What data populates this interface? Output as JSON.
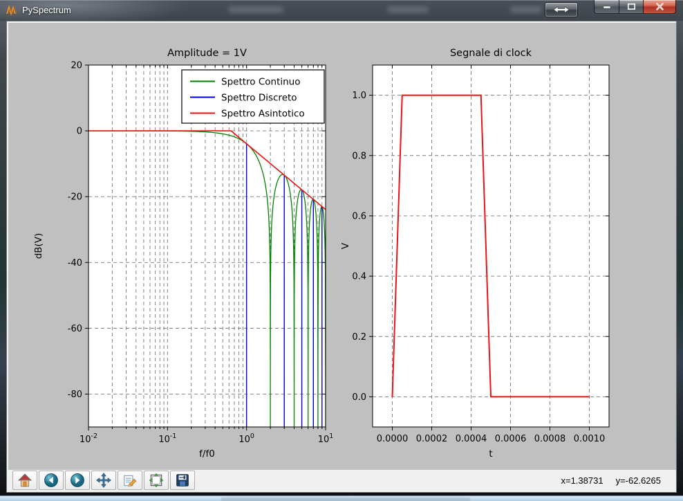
{
  "window": {
    "title": "PySpectrum",
    "app_icon": "matplotlib-logo-icon",
    "controls": [
      {
        "name": "resize",
        "icon": "resize-horizontal-icon"
      },
      {
        "name": "minimize",
        "icon": "minimize-icon"
      },
      {
        "name": "maximize",
        "icon": "maximize-icon"
      },
      {
        "name": "close",
        "icon": "close-icon"
      }
    ]
  },
  "figure": {
    "background_color": "#c0c0c0",
    "axes_background": "#ffffff",
    "grid_color": "#787878"
  },
  "chart_data": [
    {
      "type": "line",
      "title": "Amplitude = 1V",
      "xlabel": "f/f0",
      "ylabel": "dB(V)",
      "xscale": "log",
      "xlim": [
        0.01,
        10
      ],
      "ylim": [
        -90,
        20
      ],
      "xticks": [
        0.01,
        0.1,
        1,
        10
      ],
      "xtick_labels": [
        {
          "base": "10",
          "exp": "-2"
        },
        {
          "base": "10",
          "exp": "-1"
        },
        {
          "base": "10",
          "exp": "0"
        },
        {
          "base": "10",
          "exp": "1"
        }
      ],
      "yticks": [
        20,
        0,
        -20,
        -40,
        -60,
        -80
      ],
      "grid": true,
      "legend": {
        "position": "upper center",
        "entries": [
          {
            "label": "Spettro Continuo",
            "color": "#008000"
          },
          {
            "label": "Spettro Discreto",
            "color": "#0000dd"
          },
          {
            "label": "Spettro Asintotico",
            "color": "#ee1111"
          }
        ]
      },
      "series": [
        {
          "name": "Spettro Continuo",
          "color": "#008000",
          "type": "curve",
          "formula": "20*log10(abs(sin(pi*x/2)/(pi*x/2)))",
          "nulls_at": [
            2,
            4,
            6,
            8,
            10
          ],
          "peak_points": [
            [
              1,
              -3.92
            ],
            [
              3,
              -13.46
            ],
            [
              5,
              -17.9
            ],
            [
              7,
              -20.82
            ],
            [
              9,
              -23.01
            ]
          ]
        },
        {
          "name": "Spettro Discreto",
          "color": "#0000dd",
          "type": "stem",
          "x": [
            1,
            3,
            5,
            7,
            9
          ],
          "y": [
            -3.92,
            -13.46,
            -17.9,
            -20.82,
            -23.01
          ]
        },
        {
          "name": "Spettro Asintotico",
          "color": "#ee1111",
          "type": "line",
          "slope_db_per_decade": -20,
          "points": [
            [
              0.01,
              0
            ],
            [
              0.6366,
              0
            ],
            [
              10,
              -23.92
            ]
          ]
        }
      ]
    },
    {
      "type": "line",
      "title": "Segnale di clock",
      "xlabel": "t",
      "ylabel": "V",
      "xlim": [
        -0.0001,
        0.0011
      ],
      "ylim": [
        -0.1,
        1.1
      ],
      "xticks": [
        0.0,
        0.0002,
        0.0004,
        0.0006,
        0.0008,
        0.001
      ],
      "xtick_labels": [
        "0.0000",
        "0.0002",
        "0.0004",
        "0.0006",
        "0.0008",
        "0.0010"
      ],
      "yticks": [
        0.0,
        0.2,
        0.4,
        0.6,
        0.8,
        1.0
      ],
      "ytick_labels": [
        "0.0",
        "0.2",
        "0.4",
        "0.6",
        "0.8",
        "1.0"
      ],
      "grid": true,
      "series": [
        {
          "name": "clock",
          "color": "#ee1111",
          "type": "line",
          "points": [
            [
              0.0,
              0.0
            ],
            [
              5e-05,
              1.0
            ],
            [
              0.00045,
              1.0
            ],
            [
              0.0005,
              0.0
            ],
            [
              0.001,
              0.0
            ]
          ]
        }
      ]
    }
  ],
  "toolbar": {
    "buttons": [
      {
        "label": "Home",
        "icon": "home-icon"
      },
      {
        "label": "Back",
        "icon": "back-icon"
      },
      {
        "label": "Forward",
        "icon": "forward-icon"
      },
      {
        "label": "Pan",
        "icon": "pan-icon"
      },
      {
        "label": "Zoom to rect",
        "icon": "zoom-rect-icon"
      },
      {
        "label": "Configure subplots",
        "icon": "subplots-icon"
      },
      {
        "label": "Save",
        "icon": "save-icon"
      }
    ],
    "status": {
      "x": "x=1.38731",
      "y": "y=-62.6265"
    }
  }
}
